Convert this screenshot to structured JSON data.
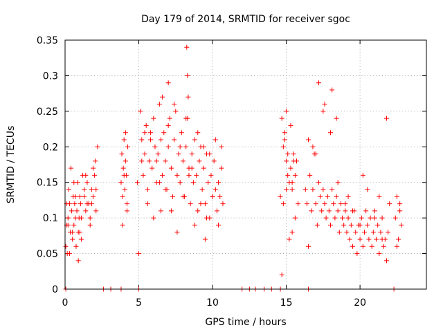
{
  "chart_data": {
    "type": "scatter",
    "title": "Day 179 of 2014, SRMTID for receiver sgoc",
    "xlabel": "GPS time / hours",
    "ylabel": "SRMTID / TECUs",
    "xlim": [
      0,
      24.5
    ],
    "ylim": [
      0,
      0.35
    ],
    "xticks": [
      0,
      5,
      10,
      15,
      20
    ],
    "xtick_labels": [
      "0",
      "5",
      "10",
      "15",
      "20"
    ],
    "yticks": [
      0,
      0.05,
      0.1,
      0.15,
      0.2,
      0.25,
      0.3,
      0.35
    ],
    "ytick_labels": [
      "0",
      "0.05",
      "0.1",
      "0.15",
      "0.2",
      "0.25",
      "0.3",
      "0.35"
    ],
    "grid": true,
    "marker": "+",
    "series_color": "#ff0000",
    "series": [
      {
        "name": "SRMTID",
        "x": [
          0.05,
          0.1,
          0.15,
          0.2,
          0.25,
          0.3,
          0.35,
          0.4,
          0.45,
          0.5,
          0.55,
          0.6,
          0.65,
          0.7,
          0.75,
          0.8,
          0.85,
          0.9,
          0.95,
          1.0,
          1.05,
          1.1,
          1.2,
          1.3,
          1.4,
          1.5,
          1.6,
          1.7,
          1.8,
          1.9,
          2.0,
          2.05,
          2.1,
          2.2,
          0.1,
          0.3,
          0.5,
          0.7,
          0.9,
          1.1,
          1.3,
          1.5,
          1.7,
          1.9,
          2.1,
          0.2,
          0.6,
          1.0,
          1.4,
          1.8,
          3.8,
          3.85,
          3.9,
          3.95,
          4.0,
          4.05,
          4.1,
          4.15,
          4.2,
          4.25,
          3.9,
          4.0,
          4.1,
          4.2,
          4.9,
          5.0,
          5.1,
          5.2,
          5.3,
          5.4,
          5.5,
          5.6,
          5.7,
          5.8,
          5.9,
          6.0,
          6.1,
          6.2,
          6.3,
          6.4,
          6.5,
          6.6,
          6.7,
          6.8,
          6.9,
          7.0,
          7.1,
          7.2,
          7.3,
          7.4,
          7.5,
          7.6,
          7.7,
          7.8,
          7.9,
          8.0,
          8.1,
          8.2,
          8.3,
          8.4,
          8.5,
          8.6,
          8.7,
          8.8,
          8.9,
          9.0,
          9.1,
          9.2,
          9.3,
          9.4,
          9.5,
          9.6,
          9.7,
          9.8,
          9.9,
          10.0,
          10.1,
          10.2,
          10.3,
          10.4,
          10.5,
          10.6,
          10.7,
          5.2,
          5.6,
          6.0,
          6.4,
          6.8,
          7.2,
          7.6,
          8.0,
          8.4,
          8.8,
          9.2,
          9.6,
          10.0,
          10.4,
          5.4,
          5.8,
          6.2,
          6.6,
          7.0,
          7.4,
          7.8,
          8.2,
          8.6,
          9.0,
          9.4,
          9.8,
          10.2,
          10.6,
          8.25,
          8.3,
          8.35,
          7.0,
          6.5,
          9.5,
          14.6,
          14.7,
          14.8,
          14.9,
          15.0,
          15.1,
          15.2,
          15.3,
          15.4,
          15.5,
          15.6,
          15.7,
          15.8,
          14.8,
          15.0,
          15.2,
          15.4,
          15.6,
          14.9,
          15.1,
          15.3,
          15.5,
          14.7,
          15.0,
          15.4,
          16.3,
          16.4,
          16.5,
          16.6,
          16.7,
          16.8,
          16.9,
          17.0,
          17.1,
          17.2,
          17.3,
          17.4,
          17.5,
          17.6,
          17.7,
          17.8,
          17.9,
          18.0,
          18.1,
          18.2,
          18.3,
          18.4,
          18.5,
          18.6,
          18.7,
          18.8,
          18.9,
          19.0,
          19.1,
          19.2,
          19.3,
          19.4,
          19.5,
          19.6,
          19.7,
          19.8,
          19.9,
          20.0,
          20.1,
          20.2,
          20.3,
          20.4,
          20.5,
          20.6,
          20.7,
          20.8,
          20.9,
          21.0,
          21.1,
          21.2,
          21.3,
          21.4,
          21.5,
          21.6,
          21.7,
          21.8,
          21.9,
          22.0,
          16.5,
          17.0,
          17.5,
          18.0,
          18.5,
          19.0,
          19.5,
          20.0,
          20.5,
          21.0,
          21.5,
          17.2,
          17.6,
          18.1,
          18.4,
          16.8,
          19.2,
          20.2,
          21.3,
          21.8,
          22.4,
          22.5,
          22.6,
          22.7,
          22.8,
          22.5,
          22.7,
          0.05,
          2.6,
          3.1,
          3.8,
          5.0,
          12.0,
          12.5,
          12.9,
          13.5,
          14.0,
          14.6,
          16.5,
          22.3
        ],
        "y": [
          0.06,
          0.09,
          0.05,
          0.1,
          0.14,
          0.12,
          0.08,
          0.17,
          0.11,
          0.07,
          0.13,
          0.09,
          0.12,
          0.1,
          0.06,
          0.11,
          0.15,
          0.08,
          0.1,
          0.13,
          0.12,
          0.07,
          0.16,
          0.13,
          0.11,
          0.15,
          0.12,
          0.09,
          0.14,
          0.13,
          0.16,
          0.18,
          0.14,
          0.2,
          0.12,
          0.05,
          0.08,
          0.13,
          0.04,
          0.1,
          0.14,
          0.12,
          0.1,
          0.17,
          0.11,
          0.09,
          0.15,
          0.08,
          0.16,
          0.12,
          0.15,
          0.19,
          0.13,
          0.17,
          0.21,
          0.14,
          0.18,
          0.16,
          0.12,
          0.2,
          0.09,
          0.16,
          0.22,
          0.11,
          0.15,
          0.05,
          0.25,
          0.21,
          0.16,
          0.19,
          0.23,
          0.14,
          0.18,
          0.22,
          0.17,
          0.24,
          0.2,
          0.15,
          0.19,
          0.26,
          0.21,
          0.16,
          0.22,
          0.18,
          0.14,
          0.2,
          0.24,
          0.17,
          0.13,
          0.21,
          0.25,
          0.16,
          0.19,
          0.15,
          0.22,
          0.18,
          0.13,
          0.2,
          0.24,
          0.17,
          0.12,
          0.19,
          0.15,
          0.21,
          0.16,
          0.11,
          0.18,
          0.2,
          0.14,
          0.17,
          0.12,
          0.19,
          0.15,
          0.1,
          0.16,
          0.13,
          0.18,
          0.14,
          0.11,
          0.15,
          0.13,
          0.17,
          0.12,
          0.18,
          0.12,
          0.1,
          0.15,
          0.14,
          0.11,
          0.08,
          0.13,
          0.16,
          0.09,
          0.12,
          0.1,
          0.13,
          0.09,
          0.22,
          0.21,
          0.18,
          0.27,
          0.23,
          0.26,
          0.2,
          0.24,
          0.17,
          0.22,
          0.2,
          0.19,
          0.21,
          0.2,
          0.34,
          0.3,
          0.27,
          0.29,
          0.11,
          0.07,
          0.13,
          0.24,
          0.2,
          0.22,
          0.18,
          0.16,
          0.15,
          0.17,
          0.14,
          0.19,
          0.16,
          0.18,
          0.12,
          0.12,
          0.25,
          0.07,
          0.15,
          0.1,
          0.21,
          0.19,
          0.23,
          0.18,
          0.02,
          0.14,
          0.08,
          0.14,
          0.12,
          0.06,
          0.16,
          0.11,
          0.14,
          0.19,
          0.12,
          0.09,
          0.15,
          0.13,
          0.11,
          0.14,
          0.12,
          0.1,
          0.13,
          0.11,
          0.09,
          0.14,
          0.12,
          0.1,
          0.13,
          0.11,
          0.08,
          0.12,
          0.1,
          0.09,
          0.11,
          0.08,
          0.1,
          0.07,
          0.09,
          0.06,
          0.11,
          0.08,
          0.05,
          0.09,
          0.07,
          0.1,
          0.06,
          0.08,
          0.11,
          0.09,
          0.07,
          0.1,
          0.06,
          0.08,
          0.11,
          0.07,
          0.09,
          0.05,
          0.08,
          0.1,
          0.06,
          0.07,
          0.04,
          0.08,
          0.12,
          0.21,
          0.19,
          0.25,
          0.22,
          0.15,
          0.12,
          0.11,
          0.09,
          0.14,
          0.1,
          0.07,
          0.29,
          0.26,
          0.28,
          0.24,
          0.2,
          0.13,
          0.16,
          0.13,
          0.24,
          0.1,
          0.13,
          0.07,
          0.11,
          0.09,
          0.06,
          0.12,
          0,
          0,
          0,
          0,
          0,
          0,
          0,
          0,
          0,
          0,
          0,
          0,
          0
        ]
      }
    ]
  }
}
